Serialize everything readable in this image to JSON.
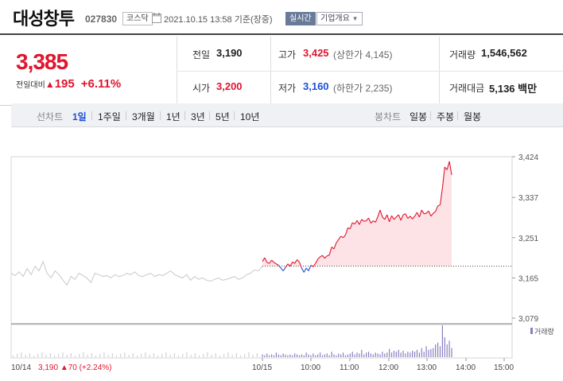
{
  "header": {
    "stock_name": "대성창투",
    "stock_code": "027830",
    "market": "코스닥",
    "datetime": "2021.10.15 13:58",
    "basis": "기준(장중)",
    "live_badge": "실시간",
    "overview_button": "기업개요"
  },
  "price": {
    "current": "3,385",
    "change_label": "전일대비",
    "change_amount": "195",
    "change_rate": "+6.11%"
  },
  "quotes": {
    "prev_label": "전일",
    "prev_value": "3,190",
    "high_label": "고가",
    "high_value": "3,425",
    "upper_limit": "(상한가 4,145)",
    "volume_label": "거래량",
    "volume_value": "1,546,562",
    "open_label": "시가",
    "open_value": "3,200",
    "low_label": "저가",
    "low_value": "3,160",
    "lower_limit": "(하한가 2,235)",
    "amount_label": "거래대금",
    "amount_value": "5,136 백만"
  },
  "tabs": {
    "line_chart_label": "선차트",
    "periods": [
      "1일",
      "1주일",
      "3개월",
      "1년",
      "3년",
      "5년",
      "10년"
    ],
    "active_period": "1일",
    "candle_chart_label": "봉차트",
    "candles": [
      "일봉",
      "주봉",
      "월봉"
    ]
  },
  "colors": {
    "up": "#e0152e",
    "down": "#1c4fd8",
    "prev_day_line": "#c8c8c8",
    "up_fill": "#fde3e6"
  },
  "chart_data": {
    "type": "line",
    "price_ticks": [
      "3,424",
      "3,337",
      "3,251",
      "3,165",
      "3,079"
    ],
    "price_tick_values": [
      3424,
      3337,
      3251,
      3165,
      3079
    ],
    "ylim": [
      3079,
      3424
    ],
    "baseline": 3190,
    "time_ticks": [
      "10/14",
      "10/15",
      "10:00",
      "11:00",
      "12:00",
      "13:00",
      "14:00",
      "15:00"
    ],
    "volume_legend": "거래량",
    "prev_day_summary": {
      "close": "3,190",
      "change": "70",
      "rate": "(+2.24%)"
    },
    "series": [
      {
        "values": [
          3175,
          3170,
          3178,
          3168,
          3185,
          3172,
          3190,
          3180,
          3200,
          3175,
          3165,
          3180,
          3172,
          3160,
          3150,
          3168,
          3162,
          3175,
          3170,
          3165,
          3155,
          3175,
          3172,
          3168,
          3170,
          3165,
          3172,
          3168,
          3170,
          3175,
          3172,
          3178,
          3170,
          3168,
          3172,
          3175,
          3168,
          3172,
          3170,
          3175,
          3180,
          3172,
          3168,
          3165,
          3172,
          3160,
          3168,
          3162,
          3165,
          3160,
          3158,
          3162,
          3165,
          3160,
          3162,
          3165,
          3168,
          3162,
          3165,
          3172,
          3175,
          3182,
          3180,
          3190
        ]
      },
      {
        "values": [
          3200,
          3208,
          3198,
          3196,
          3203,
          3198,
          3195,
          3192,
          3186,
          3180,
          3187,
          3195,
          3190,
          3199,
          3196,
          3204,
          3199,
          3186,
          3177,
          3186,
          3180,
          3192,
          3189,
          3196,
          3205,
          3210,
          3213,
          3207,
          3212,
          3214,
          3231,
          3227,
          3240,
          3247,
          3254,
          3251,
          3257,
          3272,
          3270,
          3283,
          3280,
          3288,
          3279,
          3290,
          3286,
          3287,
          3293,
          3282,
          3287,
          3284,
          3296,
          3310,
          3295,
          3290,
          3300,
          3285,
          3298,
          3290,
          3295,
          3300,
          3288,
          3300,
          3302,
          3292,
          3297,
          3291,
          3297,
          3305,
          3295,
          3310,
          3302,
          3303,
          3308,
          3297,
          3303,
          3307,
          3319,
          3321,
          3357,
          3402,
          3396,
          3414,
          3385
        ]
      }
    ],
    "volumes": [
      3,
      2,
      4,
      2,
      3,
      2,
      5,
      3,
      2,
      4,
      3,
      2,
      3,
      2,
      4,
      3,
      2,
      3,
      2,
      5,
      3,
      2,
      4,
      2,
      3,
      5,
      2,
      3,
      4,
      2,
      6,
      3,
      2,
      4,
      3,
      5,
      2,
      3,
      4,
      6,
      3,
      5,
      4,
      8,
      3,
      5,
      6,
      4,
      3,
      5,
      4,
      3,
      6,
      4,
      5,
      9,
      5,
      7,
      6,
      8,
      5,
      7,
      4,
      6,
      5,
      7,
      6,
      8,
      5,
      10,
      6,
      12,
      8,
      9,
      10,
      14,
      16,
      12,
      35,
      22,
      14,
      18,
      10
    ]
  }
}
